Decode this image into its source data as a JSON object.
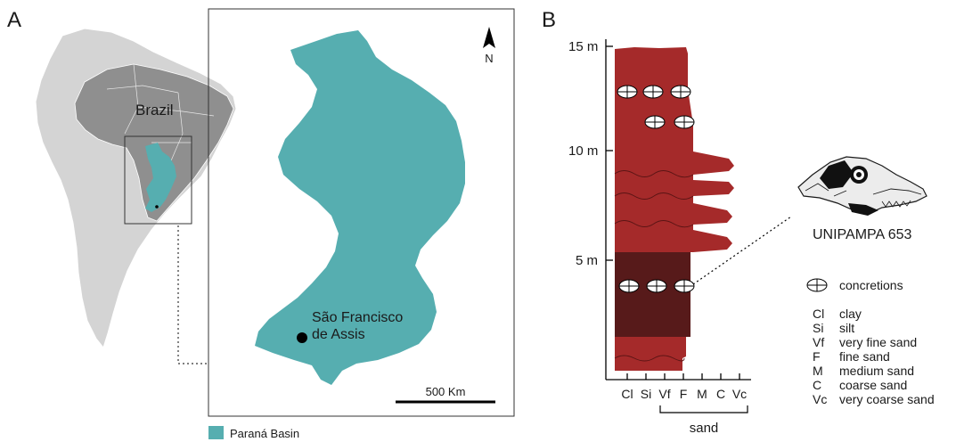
{
  "panel_a": {
    "label": "A",
    "country_label": "Brazil",
    "north_label": "N",
    "locality": {
      "line1": "São Francisco",
      "line2": "de Assis"
    },
    "scale_label": "500 Km",
    "legend_label": "Paraná Basin",
    "colors": {
      "basin": "#56aeb0",
      "continent": "#d4d4d4",
      "brazil": "#8f8f8f"
    }
  },
  "panel_b": {
    "label": "B",
    "y_ticks": [
      "15 m",
      "10 m",
      "5 m"
    ],
    "x_ticks": [
      "Cl",
      "Si",
      "Vf",
      "F",
      "M",
      "C",
      "Vc"
    ],
    "x_group_label": "sand",
    "specimen_label": "UNIPAMPA 653",
    "legend_concretions": "concretions",
    "legend": [
      {
        "abbr": "Cl",
        "text": "clay"
      },
      {
        "abbr": "Si",
        "text": "silt"
      },
      {
        "abbr": "Vf",
        "text": "very fine sand"
      },
      {
        "abbr": "F",
        "text": "fine sand"
      },
      {
        "abbr": "M",
        "text": "medium sand"
      },
      {
        "abbr": "C",
        "text": "coarse sand"
      },
      {
        "abbr": "Vc",
        "text": "very coarse sand"
      }
    ],
    "colors": {
      "upper_unit": "#a52a2a",
      "lower_unit": "#571a1a"
    }
  }
}
